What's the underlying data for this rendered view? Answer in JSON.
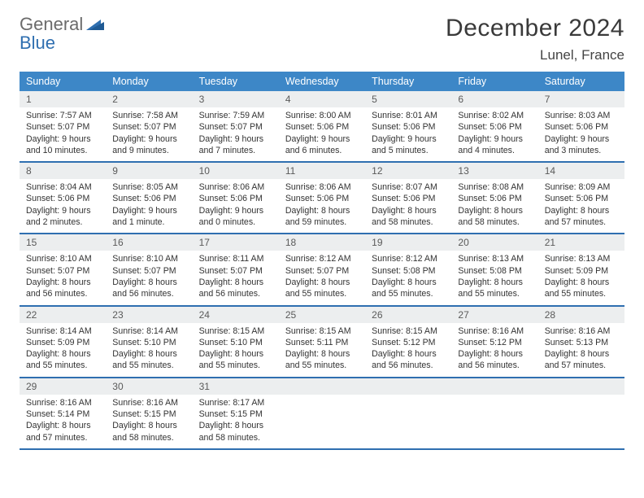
{
  "brand": {
    "word1": "General",
    "word2": "Blue"
  },
  "title": "December 2024",
  "location": "Lunel, France",
  "colors": {
    "header_bg": "#3d87c7",
    "row_border": "#2f6fb0",
    "daynum_bg": "#eceeef",
    "text": "#333333",
    "logo_gray": "#6b6b6b",
    "logo_blue": "#2f6fb0"
  },
  "days_of_week": [
    "Sunday",
    "Monday",
    "Tuesday",
    "Wednesday",
    "Thursday",
    "Friday",
    "Saturday"
  ],
  "weeks": [
    [
      {
        "n": "1",
        "sr": "Sunrise: 7:57 AM",
        "ss": "Sunset: 5:07 PM",
        "d1": "Daylight: 9 hours",
        "d2": "and 10 minutes."
      },
      {
        "n": "2",
        "sr": "Sunrise: 7:58 AM",
        "ss": "Sunset: 5:07 PM",
        "d1": "Daylight: 9 hours",
        "d2": "and 9 minutes."
      },
      {
        "n": "3",
        "sr": "Sunrise: 7:59 AM",
        "ss": "Sunset: 5:07 PM",
        "d1": "Daylight: 9 hours",
        "d2": "and 7 minutes."
      },
      {
        "n": "4",
        "sr": "Sunrise: 8:00 AM",
        "ss": "Sunset: 5:06 PM",
        "d1": "Daylight: 9 hours",
        "d2": "and 6 minutes."
      },
      {
        "n": "5",
        "sr": "Sunrise: 8:01 AM",
        "ss": "Sunset: 5:06 PM",
        "d1": "Daylight: 9 hours",
        "d2": "and 5 minutes."
      },
      {
        "n": "6",
        "sr": "Sunrise: 8:02 AM",
        "ss": "Sunset: 5:06 PM",
        "d1": "Daylight: 9 hours",
        "d2": "and 4 minutes."
      },
      {
        "n": "7",
        "sr": "Sunrise: 8:03 AM",
        "ss": "Sunset: 5:06 PM",
        "d1": "Daylight: 9 hours",
        "d2": "and 3 minutes."
      }
    ],
    [
      {
        "n": "8",
        "sr": "Sunrise: 8:04 AM",
        "ss": "Sunset: 5:06 PM",
        "d1": "Daylight: 9 hours",
        "d2": "and 2 minutes."
      },
      {
        "n": "9",
        "sr": "Sunrise: 8:05 AM",
        "ss": "Sunset: 5:06 PM",
        "d1": "Daylight: 9 hours",
        "d2": "and 1 minute."
      },
      {
        "n": "10",
        "sr": "Sunrise: 8:06 AM",
        "ss": "Sunset: 5:06 PM",
        "d1": "Daylight: 9 hours",
        "d2": "and 0 minutes."
      },
      {
        "n": "11",
        "sr": "Sunrise: 8:06 AM",
        "ss": "Sunset: 5:06 PM",
        "d1": "Daylight: 8 hours",
        "d2": "and 59 minutes."
      },
      {
        "n": "12",
        "sr": "Sunrise: 8:07 AM",
        "ss": "Sunset: 5:06 PM",
        "d1": "Daylight: 8 hours",
        "d2": "and 58 minutes."
      },
      {
        "n": "13",
        "sr": "Sunrise: 8:08 AM",
        "ss": "Sunset: 5:06 PM",
        "d1": "Daylight: 8 hours",
        "d2": "and 58 minutes."
      },
      {
        "n": "14",
        "sr": "Sunrise: 8:09 AM",
        "ss": "Sunset: 5:06 PM",
        "d1": "Daylight: 8 hours",
        "d2": "and 57 minutes."
      }
    ],
    [
      {
        "n": "15",
        "sr": "Sunrise: 8:10 AM",
        "ss": "Sunset: 5:07 PM",
        "d1": "Daylight: 8 hours",
        "d2": "and 56 minutes."
      },
      {
        "n": "16",
        "sr": "Sunrise: 8:10 AM",
        "ss": "Sunset: 5:07 PM",
        "d1": "Daylight: 8 hours",
        "d2": "and 56 minutes."
      },
      {
        "n": "17",
        "sr": "Sunrise: 8:11 AM",
        "ss": "Sunset: 5:07 PM",
        "d1": "Daylight: 8 hours",
        "d2": "and 56 minutes."
      },
      {
        "n": "18",
        "sr": "Sunrise: 8:12 AM",
        "ss": "Sunset: 5:07 PM",
        "d1": "Daylight: 8 hours",
        "d2": "and 55 minutes."
      },
      {
        "n": "19",
        "sr": "Sunrise: 8:12 AM",
        "ss": "Sunset: 5:08 PM",
        "d1": "Daylight: 8 hours",
        "d2": "and 55 minutes."
      },
      {
        "n": "20",
        "sr": "Sunrise: 8:13 AM",
        "ss": "Sunset: 5:08 PM",
        "d1": "Daylight: 8 hours",
        "d2": "and 55 minutes."
      },
      {
        "n": "21",
        "sr": "Sunrise: 8:13 AM",
        "ss": "Sunset: 5:09 PM",
        "d1": "Daylight: 8 hours",
        "d2": "and 55 minutes."
      }
    ],
    [
      {
        "n": "22",
        "sr": "Sunrise: 8:14 AM",
        "ss": "Sunset: 5:09 PM",
        "d1": "Daylight: 8 hours",
        "d2": "and 55 minutes."
      },
      {
        "n": "23",
        "sr": "Sunrise: 8:14 AM",
        "ss": "Sunset: 5:10 PM",
        "d1": "Daylight: 8 hours",
        "d2": "and 55 minutes."
      },
      {
        "n": "24",
        "sr": "Sunrise: 8:15 AM",
        "ss": "Sunset: 5:10 PM",
        "d1": "Daylight: 8 hours",
        "d2": "and 55 minutes."
      },
      {
        "n": "25",
        "sr": "Sunrise: 8:15 AM",
        "ss": "Sunset: 5:11 PM",
        "d1": "Daylight: 8 hours",
        "d2": "and 55 minutes."
      },
      {
        "n": "26",
        "sr": "Sunrise: 8:15 AM",
        "ss": "Sunset: 5:12 PM",
        "d1": "Daylight: 8 hours",
        "d2": "and 56 minutes."
      },
      {
        "n": "27",
        "sr": "Sunrise: 8:16 AM",
        "ss": "Sunset: 5:12 PM",
        "d1": "Daylight: 8 hours",
        "d2": "and 56 minutes."
      },
      {
        "n": "28",
        "sr": "Sunrise: 8:16 AM",
        "ss": "Sunset: 5:13 PM",
        "d1": "Daylight: 8 hours",
        "d2": "and 57 minutes."
      }
    ],
    [
      {
        "n": "29",
        "sr": "Sunrise: 8:16 AM",
        "ss": "Sunset: 5:14 PM",
        "d1": "Daylight: 8 hours",
        "d2": "and 57 minutes."
      },
      {
        "n": "30",
        "sr": "Sunrise: 8:16 AM",
        "ss": "Sunset: 5:15 PM",
        "d1": "Daylight: 8 hours",
        "d2": "and 58 minutes."
      },
      {
        "n": "31",
        "sr": "Sunrise: 8:17 AM",
        "ss": "Sunset: 5:15 PM",
        "d1": "Daylight: 8 hours",
        "d2": "and 58 minutes."
      },
      null,
      null,
      null,
      null
    ]
  ]
}
